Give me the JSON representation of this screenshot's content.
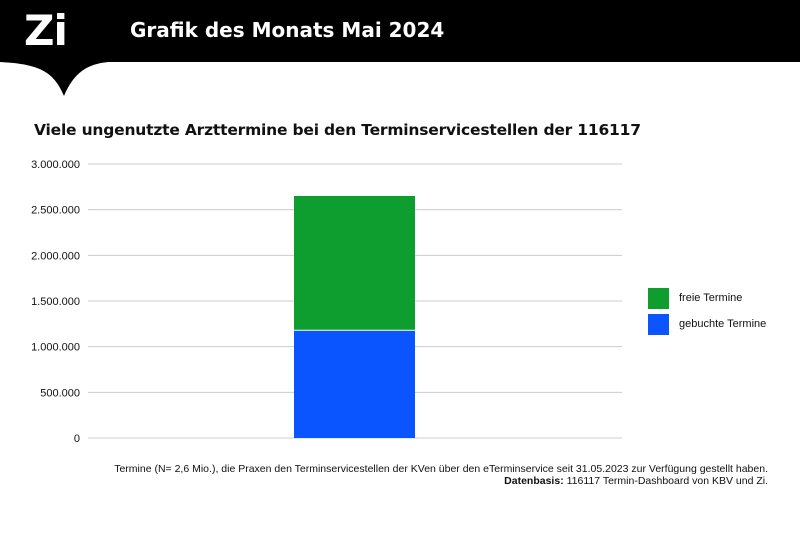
{
  "header": {
    "logo_text": "Zi",
    "title": "Grafik des Monats Mai 2024"
  },
  "chart_data": {
    "type": "bar",
    "stacked": true,
    "title": "Viele ungenutzte Arzttermine bei den Terminservicestellen der 116117",
    "categories": [
      ""
    ],
    "series": [
      {
        "name": "gebuchte Termine",
        "values": [
          1180000
        ],
        "color": "#0a55ff"
      },
      {
        "name": "freie Termine",
        "values": [
          1470000
        ],
        "color": "#0e9e2f"
      }
    ],
    "ylim": [
      0,
      3000000
    ],
    "yticks": [
      0,
      500000,
      1000000,
      1500000,
      2000000,
      2500000,
      3000000
    ],
    "ytick_labels": [
      "0",
      "500.000",
      "1.000.000",
      "1.500.000",
      "2.000.000",
      "2.500.000",
      "3.000.000"
    ],
    "grid": true,
    "legend_position": "right"
  },
  "legend": [
    {
      "label": "freie Termine",
      "color": "#0e9e2f"
    },
    {
      "label": "gebuchte Termine",
      "color": "#0a55ff"
    }
  ],
  "footnote": {
    "line1": "Termine (N= 2,6 Mio.), die Praxen den Terminservicestellen der KVen über den eTerminservice seit 31.05.2023 zur Verfügung gestellt haben.",
    "source_label": "Datenbasis:",
    "source_text": " 116117 Termin-Dashboard von KBV und Zi."
  }
}
